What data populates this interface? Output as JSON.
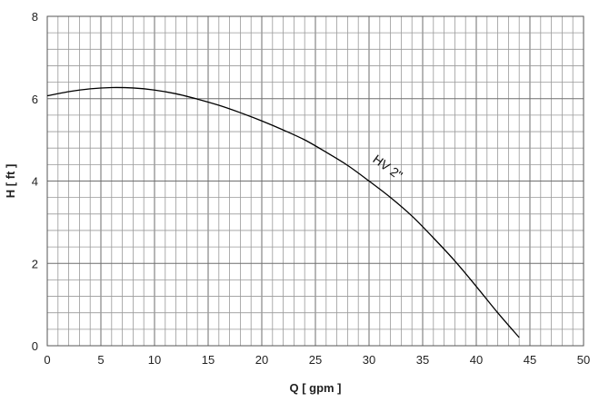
{
  "chart_data": {
    "type": "line",
    "title": "",
    "xlabel": "Q [ gpm ]",
    "ylabel": "H [ ft ]",
    "xlim": [
      0,
      50
    ],
    "ylim": [
      0,
      8
    ],
    "x_ticks": [
      "0",
      "5",
      "10",
      "15",
      "20",
      "25",
      "30",
      "35",
      "40",
      "45",
      "50"
    ],
    "y_ticks": [
      "0",
      "2",
      "4",
      "6",
      "8"
    ],
    "grid": true,
    "legend": "none",
    "series": [
      {
        "name": "HV 2\"",
        "x": [
          0,
          2,
          4,
          6,
          8,
          10,
          12,
          14,
          16,
          18,
          20,
          22,
          24,
          26,
          28,
          30,
          32,
          34,
          36,
          38,
          40,
          42,
          44
        ],
        "y": [
          6.07,
          6.17,
          6.24,
          6.27,
          6.26,
          6.21,
          6.12,
          5.99,
          5.84,
          5.66,
          5.46,
          5.24,
          5.0,
          4.7,
          4.38,
          4.0,
          3.6,
          3.15,
          2.62,
          2.06,
          1.44,
          0.8,
          0.2
        ]
      }
    ],
    "annotations": [
      {
        "text": "HV 2\"",
        "x": 31.5,
        "y": 4.25
      }
    ],
    "colors": {
      "grid": "#8a8a8a",
      "line": "#000000",
      "frame": "#555555"
    }
  }
}
